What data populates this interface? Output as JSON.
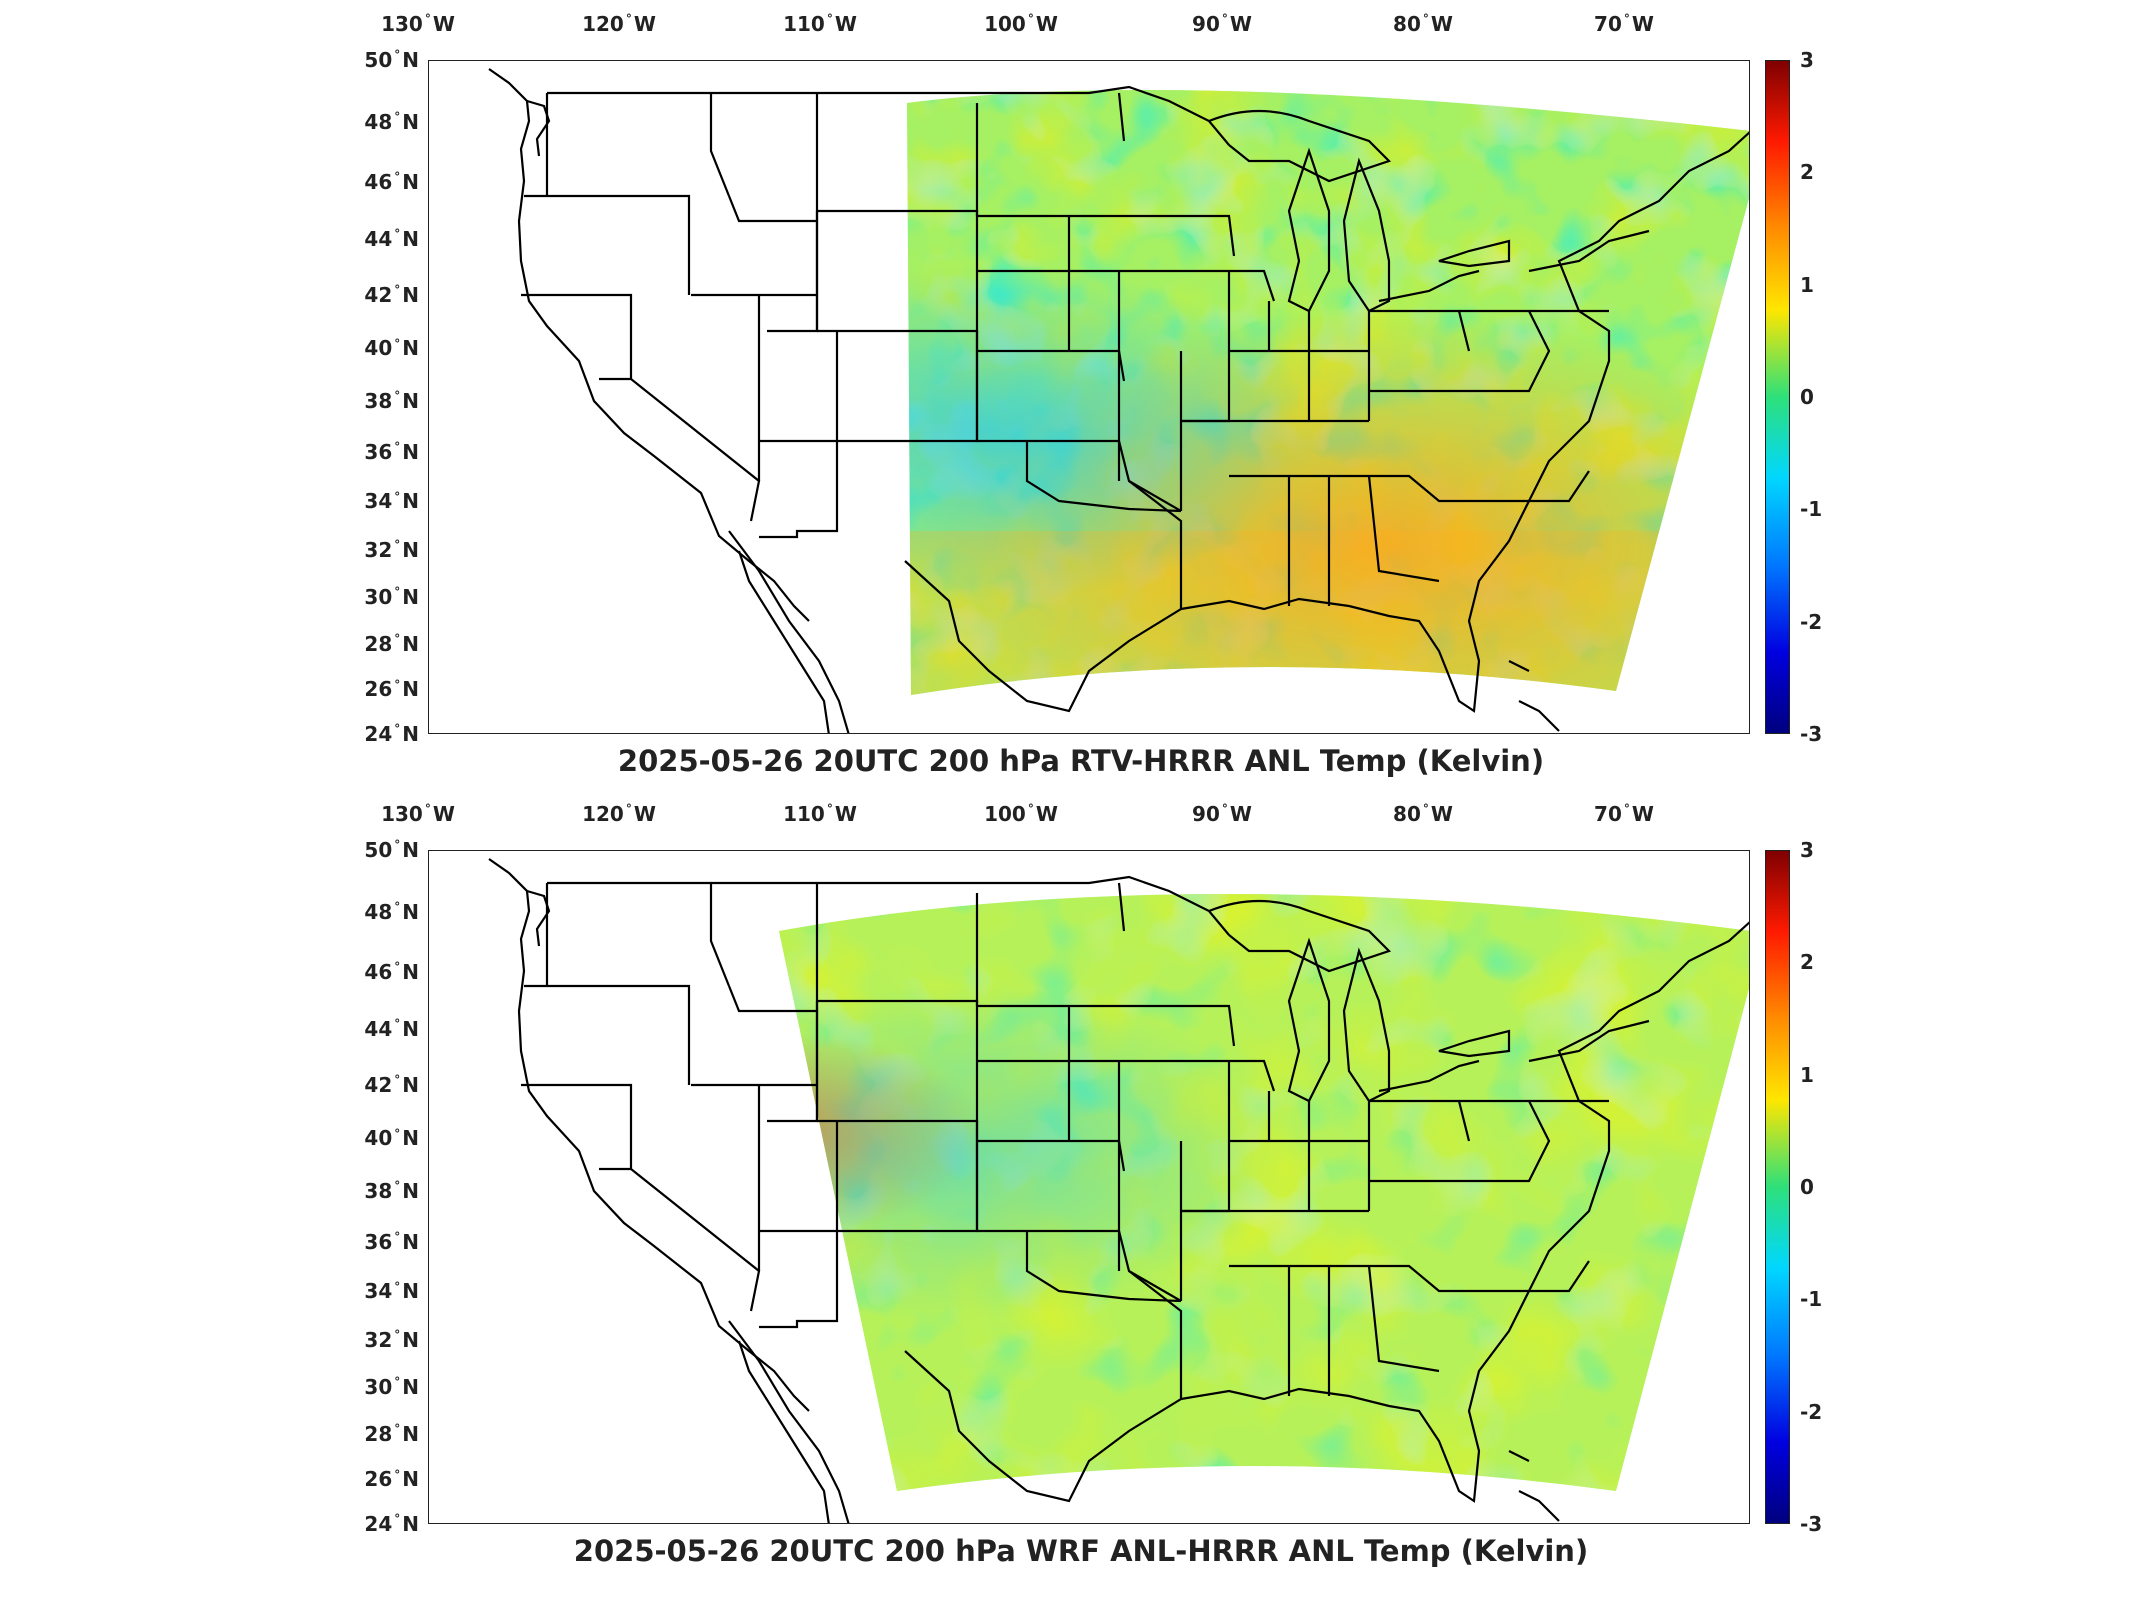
{
  "panels": [
    {
      "title": "2025-05-26 20UTC 200 hPa RTV-HRRR ANL Temp (Kelvin)",
      "lon_ticks": [
        "130",
        "120",
        "110",
        "100",
        "90",
        "80",
        "70"
      ],
      "lon_hemisphere": "W",
      "lat_ticks": [
        "50",
        "48",
        "46",
        "44",
        "42",
        "40",
        "38",
        "36",
        "34",
        "32",
        "30",
        "28",
        "26",
        "24"
      ],
      "lat_hemisphere": "N",
      "colorbar_ticks": [
        "3",
        "2",
        "1",
        "0",
        "-1",
        "-2",
        "-3"
      ],
      "colorbar_range": [
        -3,
        3
      ],
      "colormap": "jet",
      "data_domain": "RTV-HRRR analysis domain (western edge near 107° W)",
      "field_summary": "mostly near 0 K; warm (+1 to +2 K) over southern Texas, Gulf coast and Southeast; slight cool (-0.5 to -1 K) over Mississippi valley and northern plains"
    },
    {
      "title": "2025-05-26 20UTC 200 hPa WRF ANL-HRRR ANL Temp (Kelvin)",
      "lon_ticks": [
        "130",
        "120",
        "110",
        "100",
        "90",
        "80",
        "70"
      ],
      "lon_hemisphere": "W",
      "lat_ticks": [
        "50",
        "48",
        "46",
        "44",
        "42",
        "40",
        "38",
        "36",
        "34",
        "32",
        "30",
        "28",
        "26",
        "24"
      ],
      "lat_hemisphere": "N",
      "colorbar_ticks": [
        "3",
        "2",
        "1",
        "0",
        "-1",
        "-2",
        "-3"
      ],
      "colorbar_range": [
        -3,
        3
      ],
      "colormap": "jet",
      "data_domain": "WRF analysis domain (western edge near 113° W)",
      "field_summary": "mostly 0 to +0.5 K; warm (+1 to +1.5 K) over New Mexico/Arizona; slight cool over central plains and lower Mississippi"
    }
  ],
  "colors": {
    "background": "#ffffff",
    "border": "#222222",
    "coastline": "#000000"
  }
}
